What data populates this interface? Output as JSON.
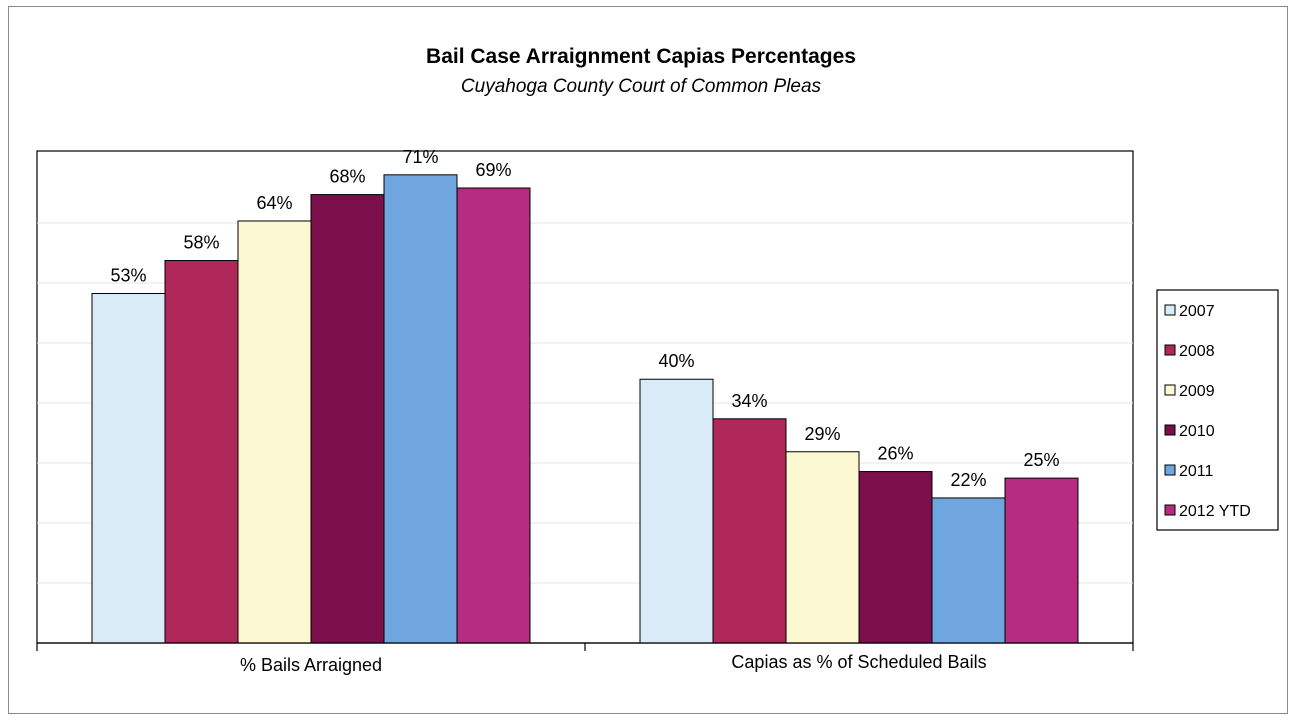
{
  "chart_data": {
    "type": "bar",
    "title": "Bail Case Arraignment Capias Percentages",
    "subtitle": "Cuyahoga County Court of Common Pleas",
    "categories": [
      "% Bails Arraigned",
      "Capias as % of Scheduled Bails"
    ],
    "series": [
      {
        "name": "2007",
        "values": [
          53,
          40
        ],
        "labels": [
          "53%",
          "40%"
        ],
        "color": "#d9ebf6"
      },
      {
        "name": "2008",
        "values": [
          58,
          34
        ],
        "labels": [
          "58%",
          "34%"
        ],
        "color": "#b0285a"
      },
      {
        "name": "2009",
        "values": [
          64,
          29
        ],
        "labels": [
          "64%",
          "29%"
        ],
        "color": "#fbf8d2"
      },
      {
        "name": "2010",
        "values": [
          68,
          26
        ],
        "labels": [
          "68%",
          "26%"
        ],
        "color": "#7a0f4c"
      },
      {
        "name": "2011",
        "values": [
          71,
          22
        ],
        "labels": [
          "71%",
          "22%"
        ],
        "color": "#6fa6e0"
      },
      {
        "name": "2012 YTD",
        "values": [
          69,
          25
        ],
        "labels": [
          "69%",
          "25%"
        ],
        "color": "#b52d80"
      }
    ],
    "ylim": [
      0,
      72
    ],
    "grid": true,
    "legend": "right",
    "xlabel": "",
    "ylabel": ""
  }
}
